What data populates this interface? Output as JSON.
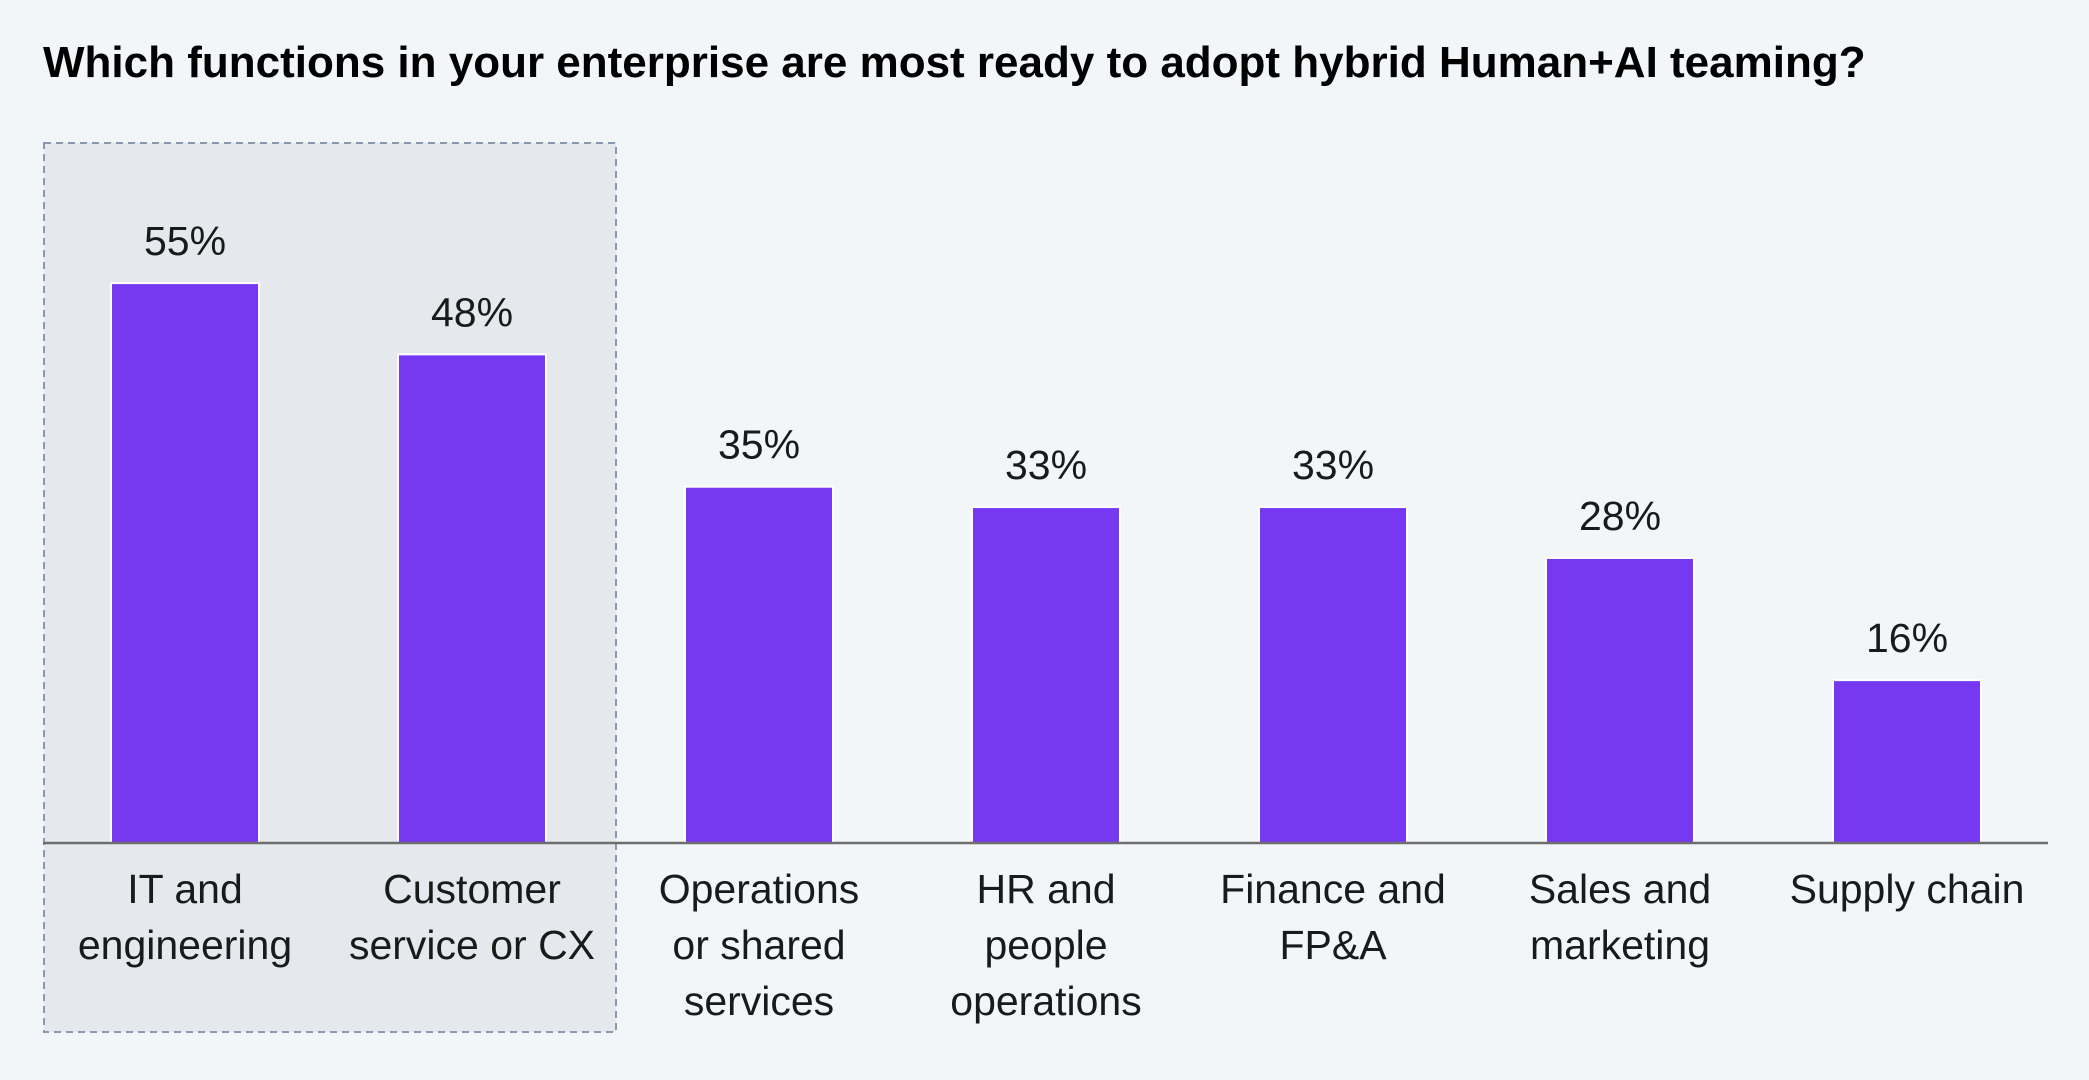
{
  "title": "Which functions in your enterprise are most ready to adopt hybrid Human+AI teaming?",
  "colors": {
    "background": "#f2f6f9",
    "bar": "#7638f0",
    "highlight_fill": "#e5e8ed",
    "highlight_border": "#8a98b0",
    "axis": "#6e6e6e",
    "text": "#1a1a1a"
  },
  "chart_data": {
    "type": "bar",
    "title": "Which functions in your enterprise are most ready to adopt hybrid Human+AI teaming?",
    "xlabel": "",
    "ylabel": "",
    "ylim": [
      0,
      60
    ],
    "grid": false,
    "categories": [
      [
        "IT and",
        "engineering"
      ],
      [
        "Customer",
        "service or CX"
      ],
      [
        "Operations",
        "or shared",
        "services"
      ],
      [
        "HR and",
        "people",
        "operations"
      ],
      [
        "Finance and",
        "FP&A"
      ],
      [
        "Sales and",
        "marketing"
      ],
      [
        "Supply chain"
      ]
    ],
    "values": [
      55,
      48,
      35,
      33,
      33,
      28,
      16
    ],
    "value_labels": [
      "55%",
      "48%",
      "35%",
      "33%",
      "33%",
      "28%",
      "16%"
    ],
    "highlighted_categories": [
      0,
      1
    ]
  }
}
